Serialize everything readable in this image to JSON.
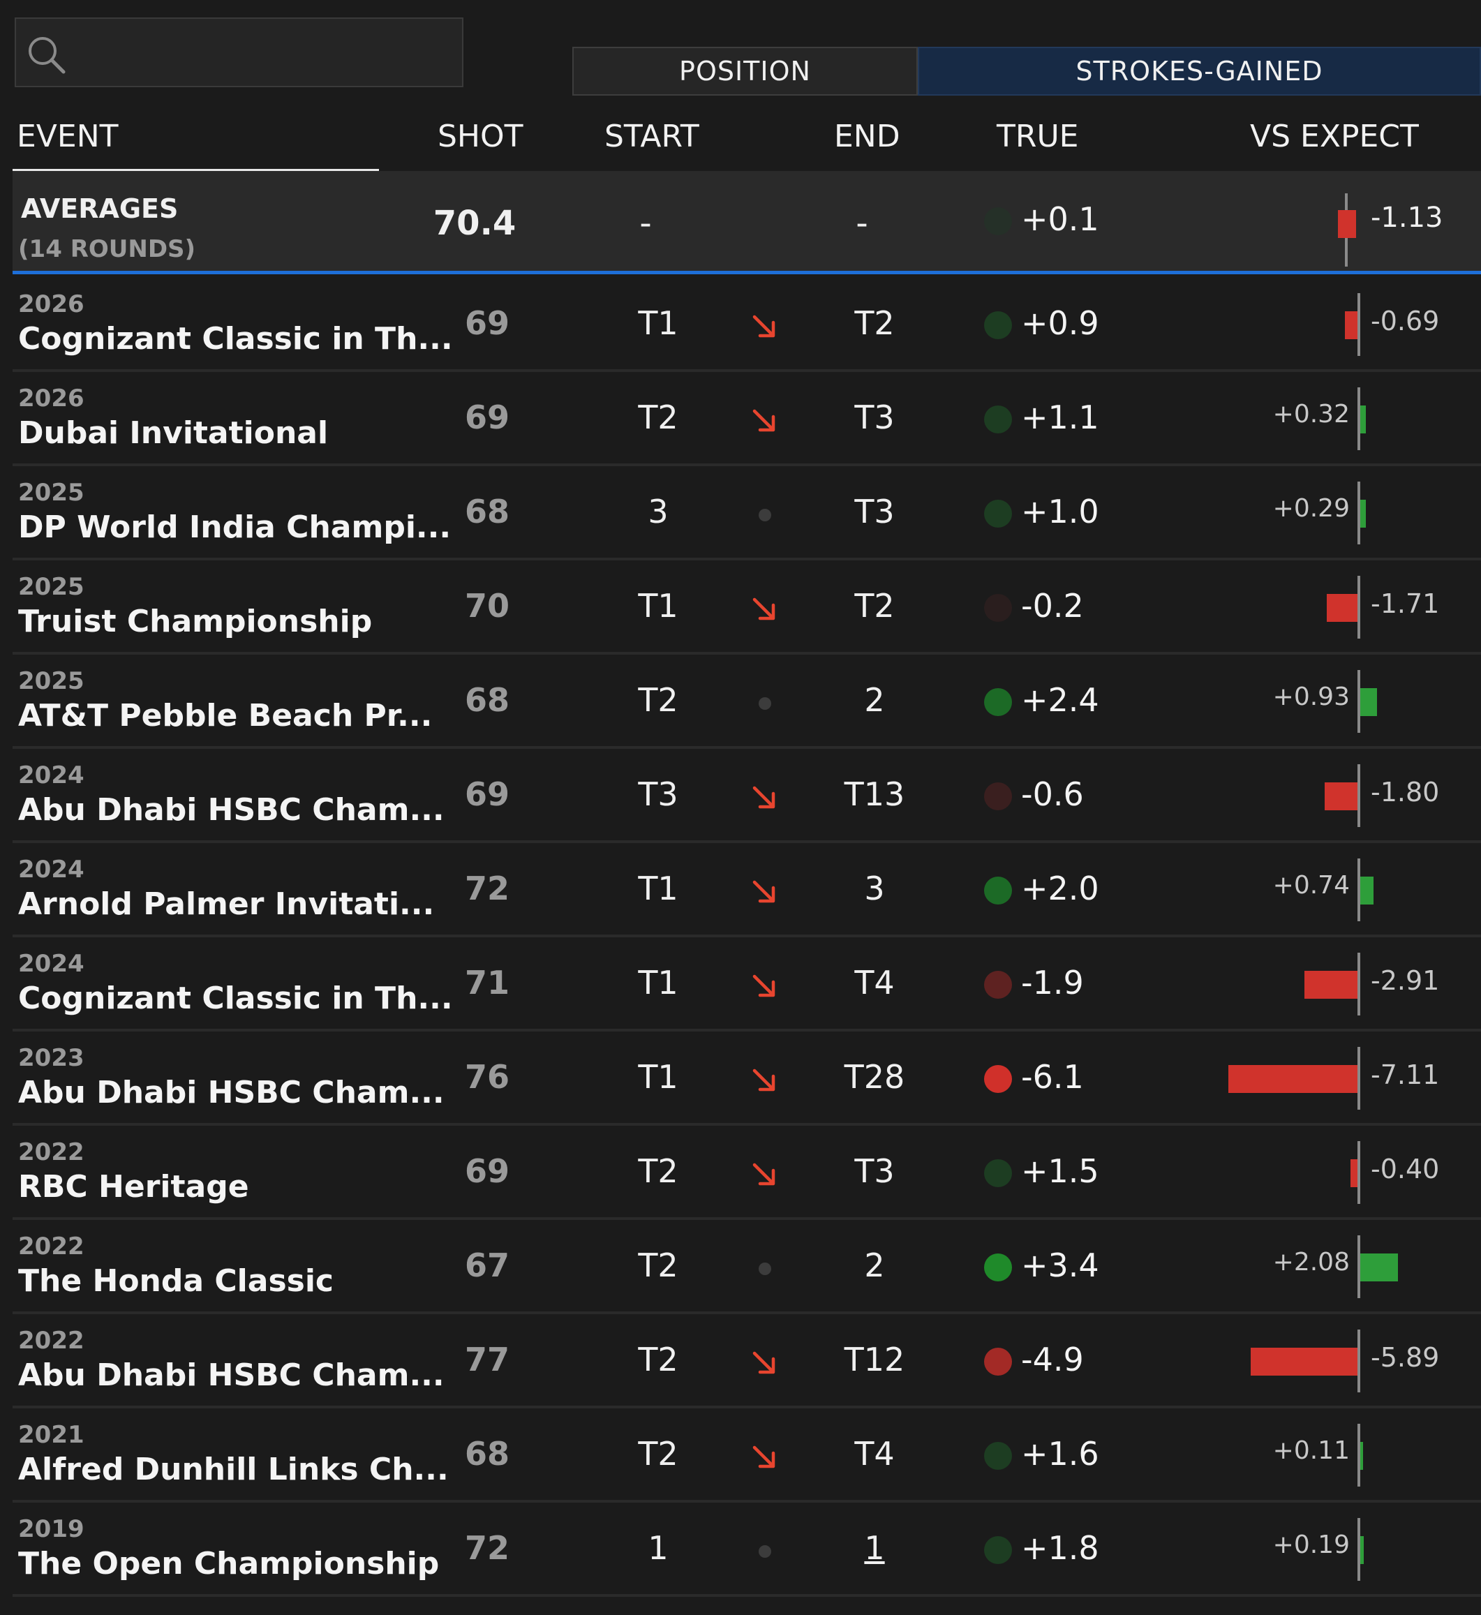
{
  "search": {
    "placeholder": ""
  },
  "toggle": {
    "position_label": "POSITION",
    "strokes_gained_label": "STROKES-GAINED"
  },
  "columns": {
    "event": "EVENT",
    "shot": "SHOT",
    "start": "START",
    "end": "END",
    "true": "TRUE",
    "vs_expect": "VS EXPECT"
  },
  "colors": {
    "positive": "#2e9e3a",
    "negative": "#d0332c",
    "accent": "#1e6fd8",
    "arrow": "#e8452f"
  },
  "averages": {
    "label": "AVERAGES",
    "sub": "(14 ROUNDS)",
    "shot": "70.4",
    "start": "-",
    "end": "-",
    "true": "+0.1",
    "vs_expect": "-1.13"
  },
  "rows": [
    {
      "year": "2026",
      "event": "Cognizant Classic in Th...",
      "shot": "69",
      "start": "T1",
      "move": "down",
      "end": "T2",
      "true": "+0.9",
      "true_num": 0.9,
      "vs": "-0.69",
      "vs_num": -0.69
    },
    {
      "year": "2026",
      "event": "Dubai Invitational",
      "shot": "69",
      "start": "T2",
      "move": "down",
      "end": "T3",
      "true": "+1.1",
      "true_num": 1.1,
      "vs": "+0.32",
      "vs_num": 0.32
    },
    {
      "year": "2025",
      "event": "DP World India Champi...",
      "shot": "68",
      "start": "3",
      "move": "same",
      "end": "T3",
      "true": "+1.0",
      "true_num": 1.0,
      "vs": "+0.29",
      "vs_num": 0.29
    },
    {
      "year": "2025",
      "event": "Truist Championship",
      "shot": "70",
      "start": "T1",
      "move": "down",
      "end": "T2",
      "true": "-0.2",
      "true_num": -0.2,
      "vs": "-1.71",
      "vs_num": -1.71
    },
    {
      "year": "2025",
      "event": "AT&T Pebble Beach Pr...",
      "shot": "68",
      "start": "T2",
      "move": "same",
      "end": "2",
      "true": "+2.4",
      "true_num": 2.4,
      "vs": "+0.93",
      "vs_num": 0.93
    },
    {
      "year": "2024",
      "event": "Abu Dhabi HSBC Cham...",
      "shot": "69",
      "start": "T3",
      "move": "down",
      "end": "T13",
      "true": "-0.6",
      "true_num": -0.6,
      "vs": "-1.80",
      "vs_num": -1.8
    },
    {
      "year": "2024",
      "event": "Arnold Palmer Invitati...",
      "shot": "72",
      "start": "T1",
      "move": "down",
      "end": "3",
      "true": "+2.0",
      "true_num": 2.0,
      "vs": "+0.74",
      "vs_num": 0.74
    },
    {
      "year": "2024",
      "event": "Cognizant Classic in Th...",
      "shot": "71",
      "start": "T1",
      "move": "down",
      "end": "T4",
      "true": "-1.9",
      "true_num": -1.9,
      "vs": "-2.91",
      "vs_num": -2.91
    },
    {
      "year": "2023",
      "event": "Abu Dhabi HSBC Cham...",
      "shot": "76",
      "start": "T1",
      "move": "down",
      "end": "T28",
      "true": "-6.1",
      "true_num": -6.1,
      "vs": "-7.11",
      "vs_num": -7.11
    },
    {
      "year": "2022",
      "event": "RBC Heritage",
      "shot": "69",
      "start": "T2",
      "move": "down",
      "end": "T3",
      "true": "+1.5",
      "true_num": 1.5,
      "vs": "-0.40",
      "vs_num": -0.4
    },
    {
      "year": "2022",
      "event": "The Honda Classic",
      "shot": "67",
      "start": "T2",
      "move": "same",
      "end": "2",
      "true": "+3.4",
      "true_num": 3.4,
      "vs": "+2.08",
      "vs_num": 2.08
    },
    {
      "year": "2022",
      "event": "Abu Dhabi HSBC Cham...",
      "shot": "77",
      "start": "T2",
      "move": "down",
      "end": "T12",
      "true": "-4.9",
      "true_num": -4.9,
      "vs": "-5.89",
      "vs_num": -5.89
    },
    {
      "year": "2021",
      "event": "Alfred Dunhill Links Ch...",
      "shot": "68",
      "start": "T2",
      "move": "down",
      "end": "T4",
      "true": "+1.6",
      "true_num": 1.6,
      "vs": "+0.11",
      "vs_num": 0.11
    },
    {
      "year": "2019",
      "event": "The Open Championship",
      "shot": "72",
      "start": "1",
      "move": "same",
      "end": "1",
      "end_underlined": true,
      "true": "+1.8",
      "true_num": 1.8,
      "vs": "+0.19",
      "vs_num": 0.19
    }
  ]
}
